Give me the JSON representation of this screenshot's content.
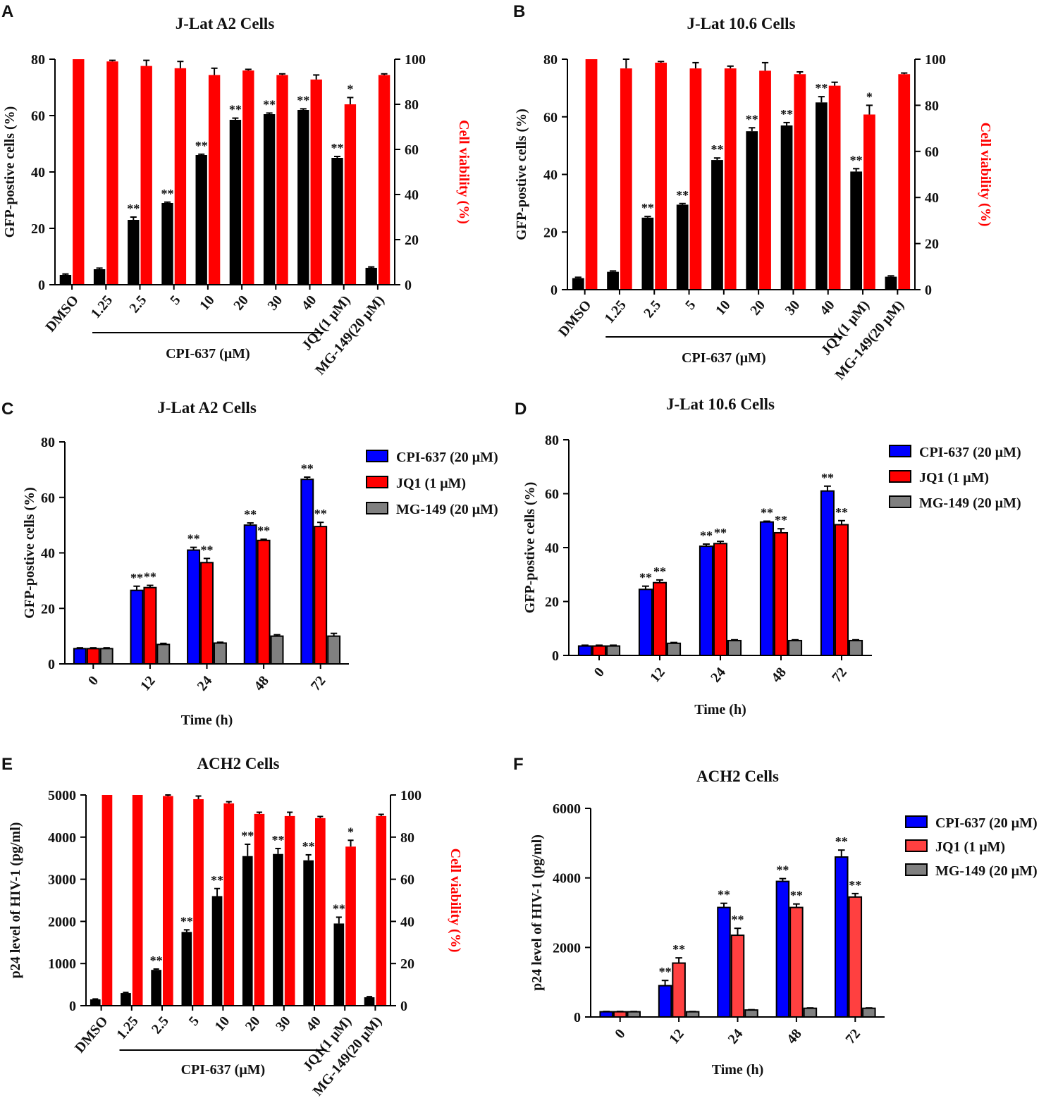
{
  "chart_data": [
    {
      "id": "A",
      "letter": "A",
      "type": "bar",
      "title": "J-Lat A2 Cells",
      "categories": [
        "DMSO",
        "1.25",
        "2.5",
        "5",
        "10",
        "20",
        "30",
        "40",
        "JQ1(1 μM)",
        "MG-149(20 μM)"
      ],
      "group_label": "CPI-637 (μM)",
      "ylabel": "GFP-postive cells (%)",
      "ylim": [
        0,
        80
      ],
      "yticks": [
        0,
        20,
        40,
        60,
        80
      ],
      "y2label": "Cell viability (%)",
      "y2lim": [
        0,
        100
      ],
      "y2ticks": [
        0,
        20,
        40,
        60,
        80,
        100
      ],
      "series": [
        {
          "name": "GFP-postive cells",
          "color": "#000000",
          "axis": "left",
          "values": [
            3.5,
            5.5,
            23,
            29,
            46,
            58.5,
            60.5,
            62,
            45,
            6
          ],
          "errors": [
            0.3,
            0.4,
            1.0,
            0.3,
            0.3,
            0.6,
            0.4,
            0.4,
            0.5,
            0.3
          ],
          "stars": [
            "",
            "",
            "**",
            "**",
            "**",
            "**",
            "**",
            "**",
            "**",
            ""
          ]
        },
        {
          "name": "Cell viability",
          "color": "#ff0000",
          "axis": "right",
          "values": [
            100,
            99,
            97,
            96,
            93,
            95,
            93,
            91,
            80,
            93
          ],
          "errors": [
            0,
            0.5,
            2.5,
            3,
            3,
            0.5,
            0.5,
            2,
            3,
            0.5
          ],
          "stars": [
            "",
            "",
            "",
            "",
            "",
            "",
            "",
            "",
            "*",
            ""
          ]
        }
      ]
    },
    {
      "id": "B",
      "letter": "B",
      "type": "bar",
      "title": "J-Lat 10.6 Cells",
      "categories": [
        "DMSO",
        "1.25",
        "2.5",
        "5",
        "10",
        "20",
        "30",
        "40",
        "JQ1(1 μM)",
        "MG-149(20 μM)"
      ],
      "group_label": "CPI-637 (μM)",
      "ylabel": "GFP-postive cells (%)",
      "ylim": [
        0,
        80
      ],
      "yticks": [
        0,
        20,
        40,
        60,
        80
      ],
      "y2label": "Cell viability (%)",
      "y2lim": [
        0,
        100
      ],
      "y2ticks": [
        0,
        20,
        40,
        60,
        80,
        100
      ],
      "series": [
        {
          "name": "GFP-postive cells",
          "color": "#000000",
          "axis": "left",
          "values": [
            4,
            6.2,
            25,
            29.5,
            45,
            55,
            57,
            65,
            41,
            4.5
          ],
          "errors": [
            0.3,
            0.3,
            0.4,
            0.4,
            0.7,
            1.2,
            1.0,
            2.0,
            1.0,
            0.3
          ],
          "stars": [
            "",
            "",
            "**",
            "**",
            "**",
            "**",
            "**",
            "**",
            "**",
            ""
          ]
        },
        {
          "name": "Cell viability",
          "color": "#ff0000",
          "axis": "right",
          "values": [
            100,
            96,
            98.5,
            96,
            96,
            95,
            93.5,
            88.5,
            76,
            93.5
          ],
          "errors": [
            0,
            4,
            0.5,
            2.5,
            1,
            3.5,
            1,
            1.5,
            4,
            0.5
          ],
          "stars": [
            "",
            "",
            "",
            "",
            "",
            "",
            "",
            "",
            "*",
            ""
          ]
        }
      ]
    },
    {
      "id": "C",
      "letter": "C",
      "type": "bar",
      "title": "J-Lat A2 Cells",
      "categories": [
        "0",
        "12",
        "24",
        "48",
        "72"
      ],
      "xlabel": "Time (h)",
      "ylabel": "GFP-postive cells (%)",
      "ylim": [
        0,
        80
      ],
      "yticks": [
        0,
        20,
        40,
        60,
        80
      ],
      "legend_position": "right",
      "series": [
        {
          "name": "CPI-637 (20 μM)",
          "color": "#0000ff",
          "values": [
            5.5,
            26.5,
            41,
            50,
            66.5
          ],
          "errors": [
            0.3,
            1.5,
            1,
            0.8,
            0.8
          ],
          "stars": [
            "",
            "**",
            "**",
            "**",
            "**"
          ]
        },
        {
          "name": "JQ1 (1 μM)",
          "color": "#ff0000",
          "values": [
            5.5,
            27.5,
            36.5,
            44.5,
            49.5
          ],
          "errors": [
            0.3,
            0.8,
            1.5,
            0.4,
            1.5
          ],
          "stars": [
            "",
            "**",
            "**",
            "**",
            "**"
          ]
        },
        {
          "name": "MG-149 (20 μM)",
          "color": "#808080",
          "values": [
            5.5,
            7,
            7.5,
            10,
            10
          ],
          "errors": [
            0.3,
            0.4,
            0.3,
            0.5,
            1
          ],
          "stars": [
            "",
            "",
            "",
            "",
            ""
          ]
        }
      ]
    },
    {
      "id": "D",
      "letter": "D",
      "type": "bar",
      "title": "J-Lat 10.6 Cells",
      "categories": [
        "0",
        "12",
        "24",
        "48",
        "72"
      ],
      "xlabel": "Time (h)",
      "ylabel": "GFP-postive cells (%)",
      "ylim": [
        0,
        80
      ],
      "yticks": [
        0,
        20,
        40,
        60,
        80
      ],
      "legend_position": "right",
      "series": [
        {
          "name": "CPI-637 (20 μM)",
          "color": "#0000ff",
          "values": [
            3.5,
            24.5,
            40.5,
            49.5,
            61
          ],
          "errors": [
            0.3,
            1.2,
            0.8,
            0.3,
            1.8
          ],
          "stars": [
            "",
            "**",
            "**",
            "**",
            "**"
          ]
        },
        {
          "name": "JQ1 (1 μM)",
          "color": "#ff0000",
          "values": [
            3.5,
            27,
            41.5,
            45.5,
            48.5
          ],
          "errors": [
            0.3,
            1,
            0.8,
            1.5,
            1.5
          ],
          "stars": [
            "",
            "**",
            "**",
            "**",
            "**"
          ]
        },
        {
          "name": "MG-149 (20 μM)",
          "color": "#808080",
          "values": [
            3.5,
            4.5,
            5.5,
            5.5,
            5.5
          ],
          "errors": [
            0.3,
            0.3,
            0.3,
            0.3,
            0.3
          ],
          "stars": [
            "",
            "",
            "",
            "",
            ""
          ]
        }
      ]
    },
    {
      "id": "E",
      "letter": "E",
      "type": "bar",
      "title": "ACH2 Cells",
      "categories": [
        "DMSO",
        "1.25",
        "2.5",
        "5",
        "10",
        "20",
        "30",
        "40",
        "JQ1(1 μM)",
        "MG-149(20 μM)"
      ],
      "group_label": "CPI-637 (μM)",
      "ylabel": "p24 level of HIV-1 (pg/ml)",
      "ylim": [
        0,
        5000
      ],
      "yticks": [
        0,
        1000,
        2000,
        3000,
        4000,
        5000
      ],
      "y2label": "Cell viability (%)",
      "y2lim": [
        0,
        100
      ],
      "y2ticks": [
        0,
        20,
        40,
        60,
        80,
        100
      ],
      "series": [
        {
          "name": "p24 level of HIV-1",
          "color": "#000000",
          "axis": "left",
          "values": [
            150,
            300,
            850,
            1750,
            2600,
            3550,
            3600,
            3450,
            1950,
            200
          ],
          "errors": [
            10,
            15,
            20,
            50,
            180,
            280,
            130,
            130,
            150,
            15
          ],
          "stars": [
            "",
            "",
            "**",
            "**",
            "**",
            "**",
            "**",
            "**",
            "**",
            ""
          ]
        },
        {
          "name": "Cell viability",
          "color": "#ff0000",
          "axis": "right",
          "values": [
            100,
            100,
            99.5,
            98,
            96,
            91,
            90,
            89,
            75.5,
            90
          ],
          "errors": [
            0,
            0,
            0.5,
            1.5,
            0.8,
            0.8,
            1.8,
            0.8,
            3,
            0.8
          ],
          "stars": [
            "",
            "",
            "",
            "",
            "",
            "",
            "",
            "",
            "*",
            ""
          ]
        }
      ]
    },
    {
      "id": "F",
      "letter": "F",
      "type": "bar",
      "title": "ACH2 Cells",
      "categories": [
        "0",
        "12",
        "24",
        "48",
        "72"
      ],
      "xlabel": "Time (h)",
      "ylabel": "p24 level of HIV-1 (pg/ml)",
      "ylim": [
        0,
        6000
      ],
      "yticks": [
        0,
        2000,
        4000,
        6000
      ],
      "legend_position": "right",
      "series": [
        {
          "name": "CPI-637 (20 μM)",
          "color": "#0000ff",
          "values": [
            150,
            900,
            3150,
            3900,
            4600
          ],
          "errors": [
            10,
            150,
            120,
            80,
            200
          ],
          "stars": [
            "",
            "**",
            "**",
            "**",
            "**"
          ]
        },
        {
          "name": "JQ1 (1 μM)",
          "color": "#ff4040",
          "values": [
            150,
            1550,
            2350,
            3150,
            3450
          ],
          "errors": [
            10,
            150,
            200,
            100,
            100
          ],
          "stars": [
            "",
            "**",
            "**",
            "**",
            "**"
          ]
        },
        {
          "name": "MG-149 (20 μM)",
          "color": "#808080",
          "values": [
            150,
            150,
            200,
            250,
            250
          ],
          "errors": [
            8,
            8,
            10,
            10,
            10
          ],
          "stars": [
            "",
            "",
            "",
            "",
            ""
          ]
        }
      ]
    }
  ]
}
